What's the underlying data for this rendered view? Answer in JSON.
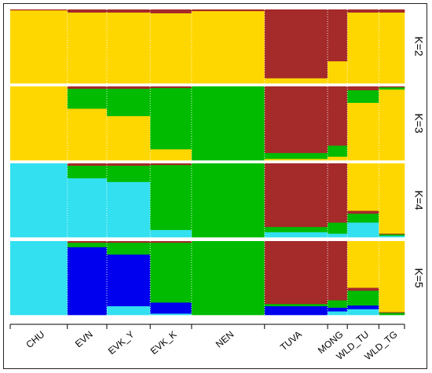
{
  "chart_data": {
    "type": "stacked-bar",
    "title": "",
    "populations": [
      "CHU",
      "EVN",
      "EVK_Y",
      "EVK_K",
      "NEN",
      "TUVA",
      "MONG",
      "WLD_TU",
      "WLD_TG"
    ],
    "panels": [
      {
        "label": "K=2",
        "cluster_colors": [
          "#ffd700",
          "#a52a2a"
        ],
        "proportions": [
          [
            0.99,
            0.01
          ],
          [
            0.96,
            0.04
          ],
          [
            0.96,
            0.04
          ],
          [
            0.95,
            0.05
          ],
          [
            0.98,
            0.02
          ],
          [
            0.07,
            0.93
          ],
          [
            0.3,
            0.7
          ],
          [
            0.96,
            0.04
          ],
          [
            0.96,
            0.04
          ]
        ]
      },
      {
        "label": "K=3",
        "cluster_colors": [
          "#ffd700",
          "#00bb00",
          "#a52a2a"
        ],
        "proportions": [
          [
            1.0,
            0.0,
            0.0
          ],
          [
            0.7,
            0.27,
            0.03
          ],
          [
            0.6,
            0.37,
            0.03
          ],
          [
            0.15,
            0.83,
            0.02
          ],
          [
            0.0,
            1.0,
            0.0
          ],
          [
            0.02,
            0.08,
            0.9
          ],
          [
            0.05,
            0.15,
            0.8
          ],
          [
            0.78,
            0.17,
            0.05
          ],
          [
            0.96,
            0.03,
            0.01
          ]
        ]
      },
      {
        "label": "K=4",
        "cluster_colors": [
          "#33e0f0",
          "#00bb00",
          "#a52a2a",
          "#ffd700"
        ],
        "proportions": [
          [
            1.0,
            0.0,
            0.0,
            0.0
          ],
          [
            0.8,
            0.17,
            0.03,
            0.0
          ],
          [
            0.75,
            0.22,
            0.03,
            0.0
          ],
          [
            0.1,
            0.88,
            0.02,
            0.0
          ],
          [
            0.0,
            1.0,
            0.0,
            0.0
          ],
          [
            0.07,
            0.07,
            0.86,
            0.0
          ],
          [
            0.05,
            0.15,
            0.8,
            0.0
          ],
          [
            0.2,
            0.12,
            0.04,
            0.64
          ],
          [
            0.02,
            0.02,
            0.01,
            0.95
          ]
        ]
      },
      {
        "label": "K=5",
        "cluster_colors": [
          "#33e0f0",
          "#0000ee",
          "#00bb00",
          "#a52a2a",
          "#ffd700"
        ],
        "proportions": [
          [
            1.0,
            0.0,
            0.0,
            0.0,
            0.0
          ],
          [
            0.0,
            0.92,
            0.06,
            0.02,
            0.0
          ],
          [
            0.12,
            0.7,
            0.16,
            0.02,
            0.0
          ],
          [
            0.02,
            0.15,
            0.81,
            0.02,
            0.0
          ],
          [
            0.0,
            0.0,
            1.0,
            0.0,
            0.0
          ],
          [
            0.0,
            0.12,
            0.03,
            0.85,
            0.0
          ],
          [
            0.05,
            0.05,
            0.1,
            0.8,
            0.0
          ],
          [
            0.08,
            0.05,
            0.2,
            0.04,
            0.63
          ],
          [
            0.0,
            0.0,
            0.03,
            0.01,
            0.96
          ]
        ]
      }
    ]
  }
}
